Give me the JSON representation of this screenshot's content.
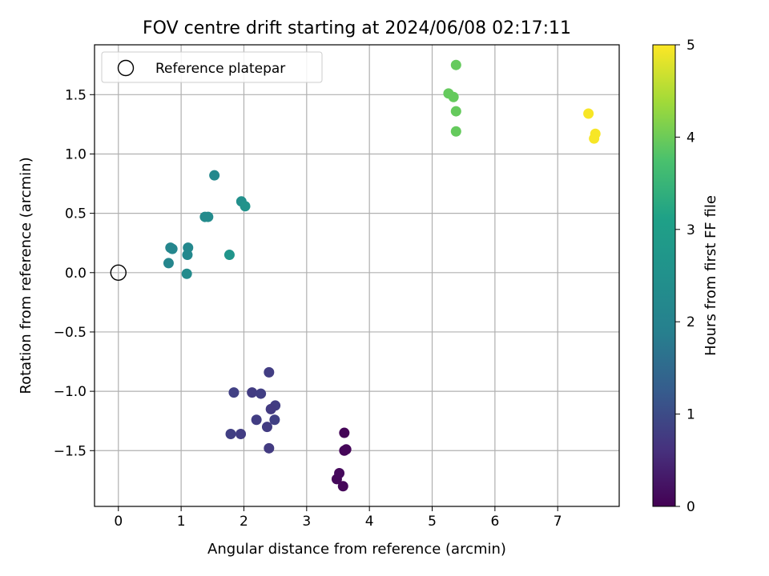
{
  "chart_data": {
    "type": "scatter",
    "title": "FOV centre drift starting at 2024/06/08 02:17:11",
    "xlabel": "Angular distance from reference (arcmin)",
    "ylabel": "Rotation from reference (arcmin)",
    "xlim": [
      -0.38,
      7.98
    ],
    "ylim": [
      -1.97,
      1.92
    ],
    "xticks": [
      0,
      1,
      2,
      3,
      4,
      5,
      6,
      7
    ],
    "yticks": [
      -1.5,
      -1.0,
      -0.5,
      0.0,
      0.5,
      1.0,
      1.5
    ],
    "grid": true,
    "legend": {
      "placement": "top-left",
      "entries": [
        "Reference platepar"
      ]
    },
    "reference_point": {
      "x": 0,
      "y": 0,
      "label": "Reference platepar"
    },
    "colorbar": {
      "label": "Hours from first FF file",
      "range": [
        0,
        5
      ],
      "ticks": [
        0,
        1,
        2,
        3,
        4,
        5
      ],
      "colormap": "viridis"
    },
    "points": [
      {
        "x": 3.48,
        "y": -1.74,
        "hours": 0.1
      },
      {
        "x": 3.52,
        "y": -1.69,
        "hours": 0.12
      },
      {
        "x": 3.58,
        "y": -1.8,
        "hours": 0.08
      },
      {
        "x": 3.6,
        "y": -1.35,
        "hours": 0.05
      },
      {
        "x": 3.6,
        "y": -1.5,
        "hours": 0.06
      },
      {
        "x": 3.63,
        "y": -1.49,
        "hours": 0.07
      },
      {
        "x": 2.4,
        "y": -0.84,
        "hours": 0.9
      },
      {
        "x": 1.84,
        "y": -1.01,
        "hours": 0.95
      },
      {
        "x": 2.13,
        "y": -1.01,
        "hours": 0.88
      },
      {
        "x": 2.27,
        "y": -1.02,
        "hours": 0.92
      },
      {
        "x": 2.5,
        "y": -1.12,
        "hours": 0.9
      },
      {
        "x": 2.43,
        "y": -1.15,
        "hours": 0.85
      },
      {
        "x": 2.2,
        "y": -1.24,
        "hours": 0.9
      },
      {
        "x": 2.49,
        "y": -1.24,
        "hours": 0.95
      },
      {
        "x": 2.37,
        "y": -1.3,
        "hours": 0.88
      },
      {
        "x": 1.79,
        "y": -1.36,
        "hours": 0.93
      },
      {
        "x": 1.95,
        "y": -1.36,
        "hours": 0.9
      },
      {
        "x": 2.4,
        "y": -1.48,
        "hours": 0.86
      },
      {
        "x": 1.53,
        "y": 0.82,
        "hours": 2.35
      },
      {
        "x": 1.96,
        "y": 0.6,
        "hours": 2.5
      },
      {
        "x": 2.02,
        "y": 0.56,
        "hours": 2.55
      },
      {
        "x": 1.38,
        "y": 0.47,
        "hours": 2.4
      },
      {
        "x": 1.43,
        "y": 0.47,
        "hours": 2.4
      },
      {
        "x": 0.83,
        "y": 0.21,
        "hours": 2.3
      },
      {
        "x": 0.86,
        "y": 0.2,
        "hours": 2.3
      },
      {
        "x": 1.11,
        "y": 0.21,
        "hours": 2.35
      },
      {
        "x": 1.1,
        "y": 0.15,
        "hours": 2.35
      },
      {
        "x": 1.77,
        "y": 0.15,
        "hours": 2.6
      },
      {
        "x": 0.8,
        "y": 0.08,
        "hours": 2.3
      },
      {
        "x": 1.09,
        "y": -0.01,
        "hours": 2.4
      },
      {
        "x": 5.38,
        "y": 1.75,
        "hours": 3.8
      },
      {
        "x": 5.26,
        "y": 1.51,
        "hours": 3.8
      },
      {
        "x": 5.34,
        "y": 1.48,
        "hours": 3.8
      },
      {
        "x": 5.38,
        "y": 1.36,
        "hours": 3.8
      },
      {
        "x": 5.38,
        "y": 1.19,
        "hours": 3.8
      },
      {
        "x": 7.49,
        "y": 1.34,
        "hours": 4.95
      },
      {
        "x": 7.6,
        "y": 1.17,
        "hours": 4.95
      },
      {
        "x": 7.58,
        "y": 1.13,
        "hours": 4.95
      }
    ]
  }
}
